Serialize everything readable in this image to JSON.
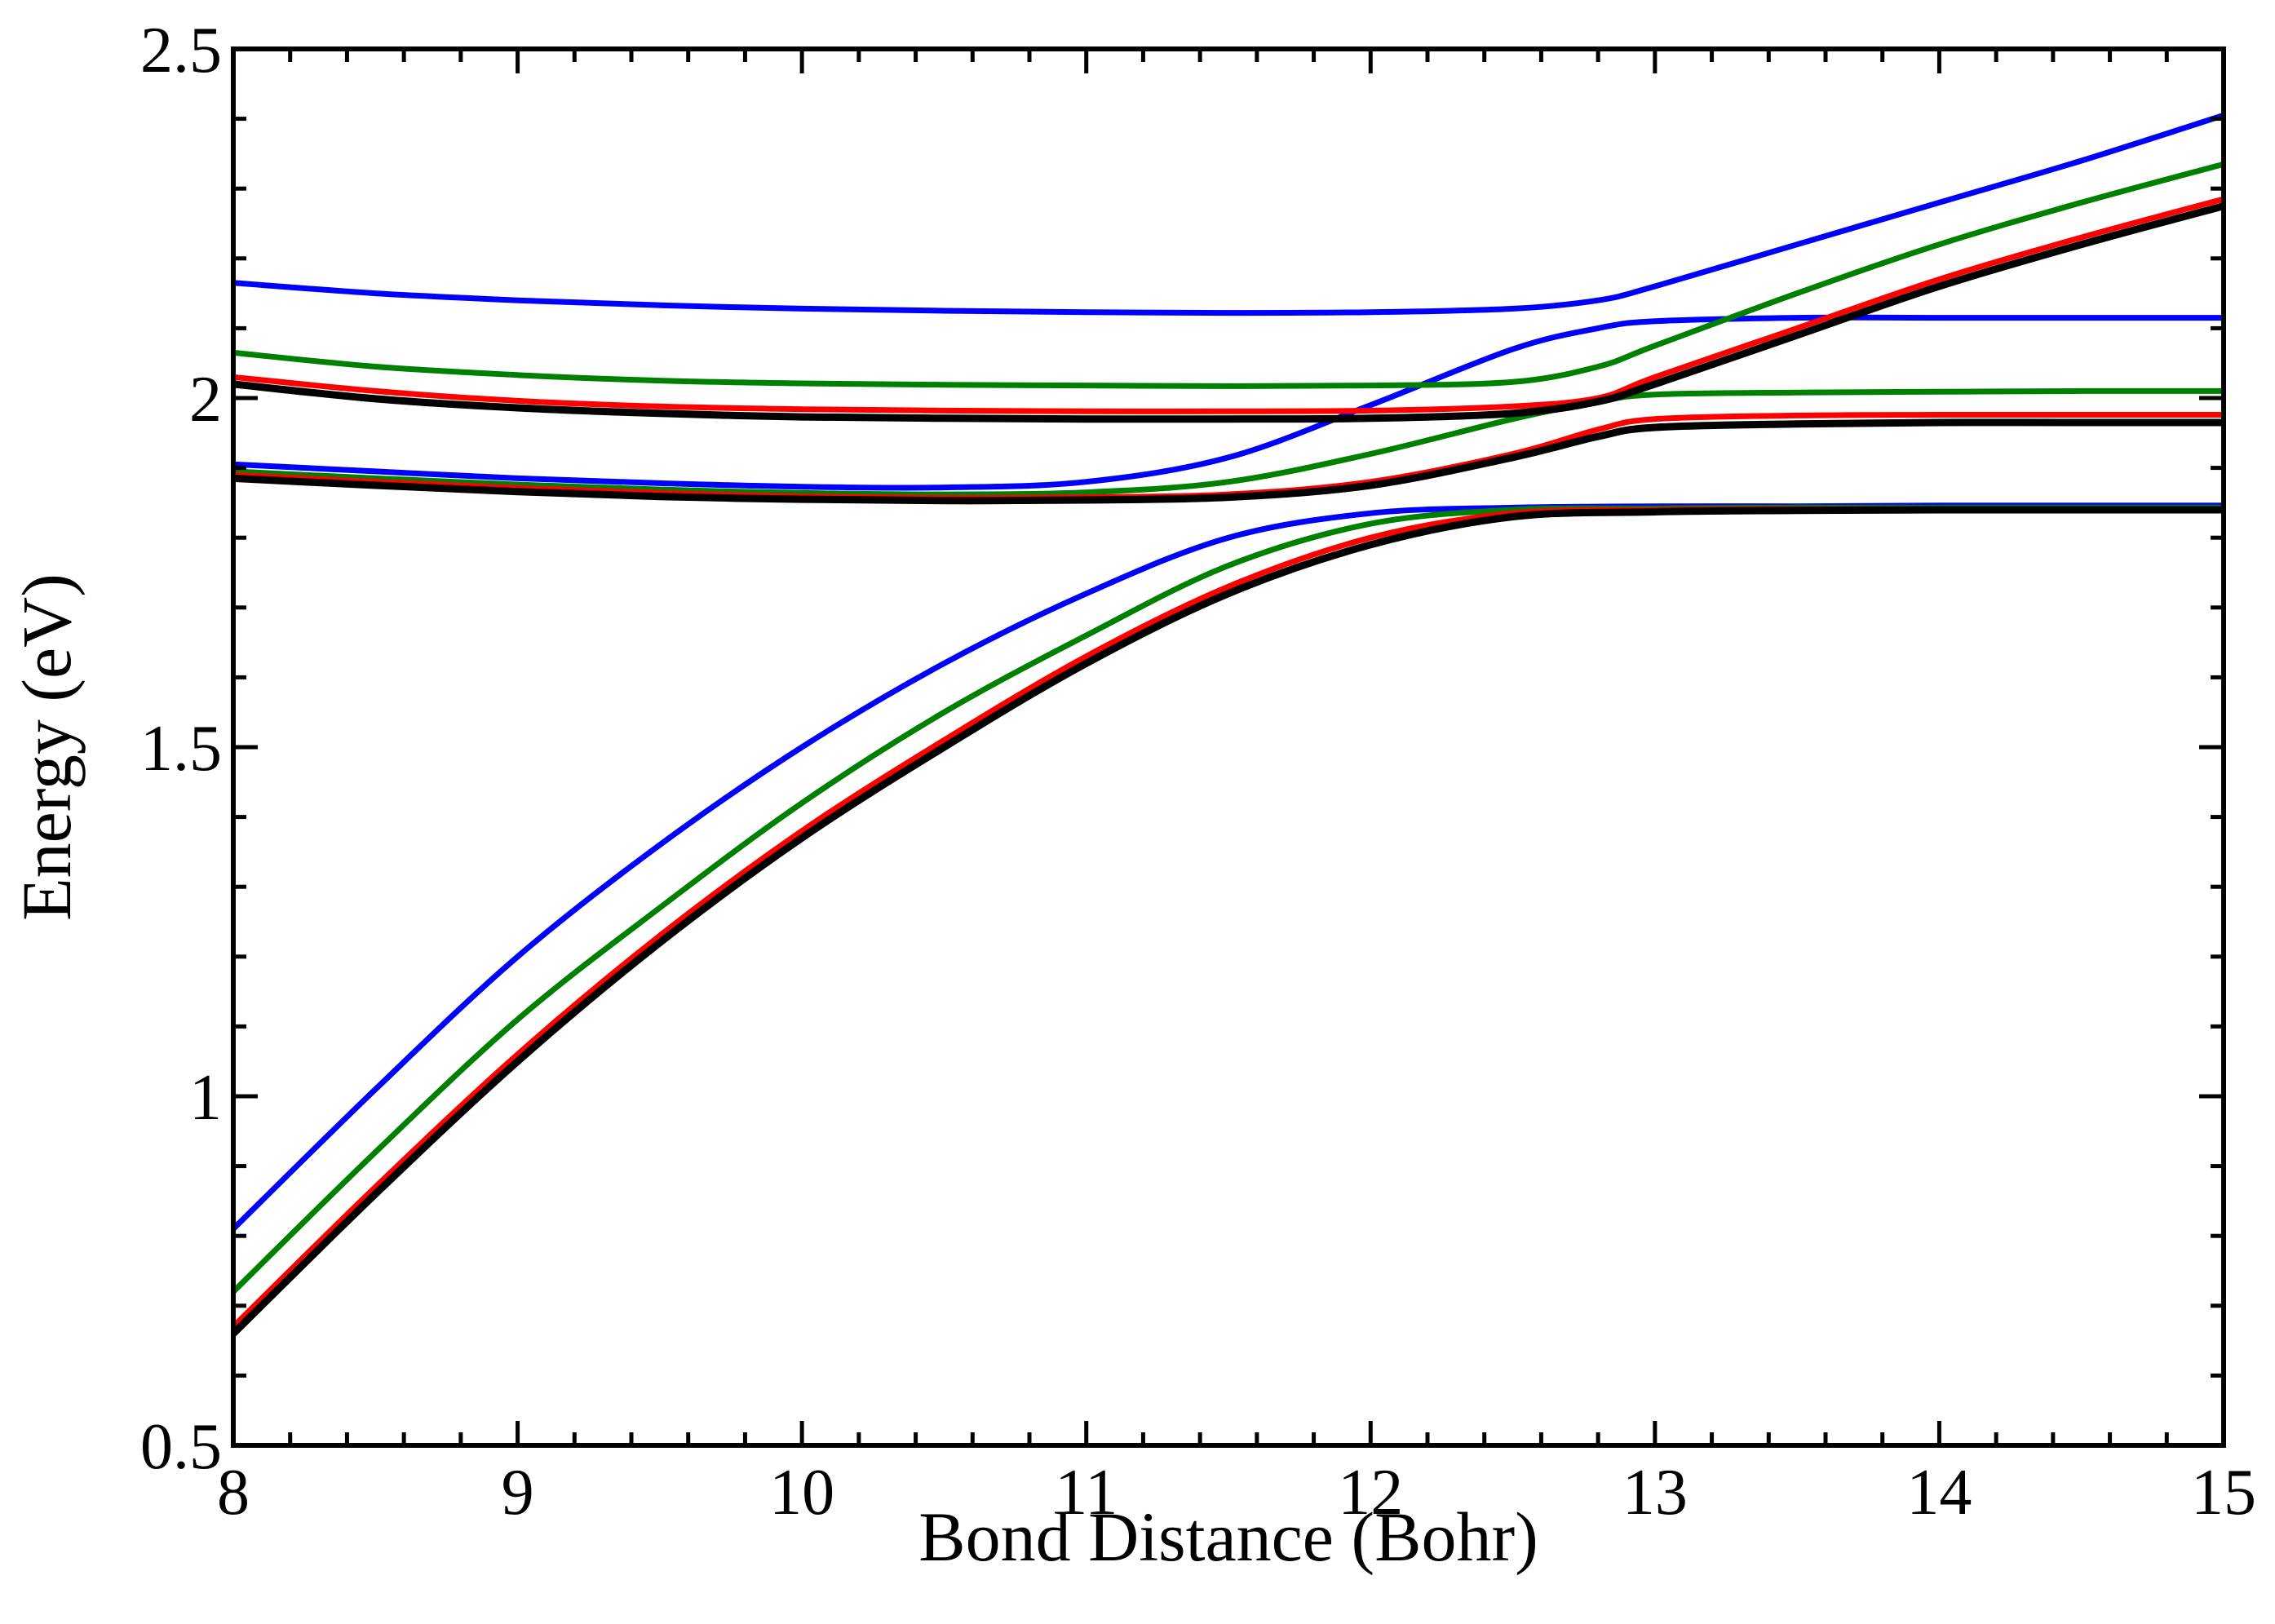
{
  "chart_data": {
    "type": "line",
    "title": "",
    "xlabel": "Bond Distance (Bohr)",
    "ylabel": "Energy (eV)",
    "xlim": [
      8,
      15
    ],
    "ylim": [
      0.5,
      2.5
    ],
    "x_ticks": [
      8,
      9,
      10,
      11,
      12,
      13,
      14,
      15
    ],
    "x_tick_labels": [
      "8",
      "9",
      "10",
      "11",
      "12",
      "13",
      "14",
      "15"
    ],
    "y_ticks": [
      0.5,
      1,
      1.5,
      2,
      2.5
    ],
    "y_tick_labels": [
      "0.5",
      "1",
      "1.5",
      "2",
      "2.5"
    ],
    "grid": false,
    "legend": "none",
    "series": [
      {
        "name": "blue-lower",
        "color": "#0000ff",
        "x": [
          8,
          8.5,
          9,
          9.5,
          10,
          10.5,
          11,
          11.5,
          12,
          12.5,
          13,
          13.5,
          14,
          14.5,
          15
        ],
        "y": [
          0.81,
          1.01,
          1.2,
          1.36,
          1.5,
          1.62,
          1.72,
          1.8,
          1.835,
          1.843,
          1.845,
          1.845,
          1.846,
          1.846,
          1.846
        ]
      },
      {
        "name": "green-lower",
        "color": "#008000",
        "x": [
          8,
          8.5,
          9,
          9.5,
          10,
          10.5,
          11,
          11.5,
          12,
          12.5,
          13,
          13.5,
          14,
          14.5,
          15
        ],
        "y": [
          0.72,
          0.92,
          1.11,
          1.27,
          1.42,
          1.55,
          1.66,
          1.76,
          1.82,
          1.84,
          1.842,
          1.843,
          1.843,
          1.843,
          1.843
        ]
      },
      {
        "name": "red-lower",
        "color": "#ff0000",
        "x": [
          8,
          8.5,
          9,
          9.5,
          10,
          10.5,
          11,
          11.5,
          12,
          12.5,
          13,
          13.5,
          14,
          14.5,
          15
        ],
        "y": [
          0.67,
          0.87,
          1.06,
          1.23,
          1.38,
          1.51,
          1.63,
          1.73,
          1.8,
          1.835,
          1.84,
          1.841,
          1.841,
          1.841,
          1.841
        ]
      },
      {
        "name": "black-lower",
        "color": "#000000",
        "x": [
          8,
          8.5,
          9,
          9.5,
          10,
          10.5,
          11,
          11.5,
          12,
          12.5,
          13,
          13.5,
          14,
          14.5,
          15
        ],
        "y": [
          0.66,
          0.86,
          1.05,
          1.22,
          1.37,
          1.5,
          1.62,
          1.72,
          1.79,
          1.83,
          1.837,
          1.839,
          1.84,
          1.84,
          1.84
        ]
      },
      {
        "name": "blue-middle",
        "color": "#0000ff",
        "x": [
          8,
          8.5,
          9,
          9.5,
          10,
          10.5,
          11,
          11.5,
          12,
          12.5,
          12.8,
          13,
          13.5,
          14,
          14.5,
          15
        ],
        "y": [
          1.905,
          1.895,
          1.885,
          1.878,
          1.873,
          1.872,
          1.88,
          1.915,
          1.99,
          2.07,
          2.1,
          2.11,
          2.115,
          2.115,
          2.115,
          2.115
        ]
      },
      {
        "name": "green-middle",
        "color": "#008000",
        "x": [
          8,
          8.5,
          9,
          9.5,
          10,
          10.5,
          11,
          11.5,
          12,
          12.5,
          12.8,
          13,
          13.5,
          14,
          14.5,
          15
        ],
        "y": [
          1.895,
          1.885,
          1.876,
          1.869,
          1.864,
          1.862,
          1.865,
          1.88,
          1.92,
          1.97,
          1.995,
          2.005,
          2.008,
          2.009,
          2.01,
          2.01
        ]
      },
      {
        "name": "red-middle",
        "color": "#ff0000",
        "x": [
          8,
          8.5,
          9,
          9.5,
          10,
          10.5,
          11,
          11.5,
          12,
          12.5,
          12.8,
          13,
          13.5,
          14,
          14.5,
          15
        ],
        "y": [
          1.89,
          1.88,
          1.871,
          1.864,
          1.859,
          1.857,
          1.858,
          1.862,
          1.88,
          1.92,
          1.955,
          1.97,
          1.975,
          1.976,
          1.976,
          1.976
        ]
      },
      {
        "name": "black-middle",
        "color": "#000000",
        "x": [
          8,
          8.5,
          9,
          9.5,
          10,
          10.5,
          11,
          11.5,
          12,
          12.5,
          12.8,
          13,
          13.5,
          14,
          14.5,
          15
        ],
        "y": [
          1.885,
          1.875,
          1.866,
          1.859,
          1.855,
          1.853,
          1.854,
          1.858,
          1.875,
          1.915,
          1.945,
          1.958,
          1.963,
          1.965,
          1.965,
          1.965
        ]
      },
      {
        "name": "blue-upper",
        "color": "#0000ff",
        "x": [
          8,
          8.5,
          9,
          9.5,
          10,
          10.5,
          11,
          11.5,
          12,
          12.5,
          12.8,
          13,
          13.5,
          14,
          14.5,
          15
        ],
        "y": [
          2.165,
          2.15,
          2.14,
          2.133,
          2.128,
          2.125,
          2.123,
          2.122,
          2.123,
          2.128,
          2.14,
          2.16,
          2.22,
          2.28,
          2.34,
          2.405
        ]
      },
      {
        "name": "green-upper",
        "color": "#008000",
        "x": [
          8,
          8.5,
          9,
          9.5,
          10,
          10.5,
          11,
          11.5,
          12,
          12.5,
          12.8,
          13,
          13.5,
          14,
          14.5,
          15
        ],
        "y": [
          2.065,
          2.045,
          2.033,
          2.025,
          2.021,
          2.019,
          2.018,
          2.017,
          2.018,
          2.023,
          2.045,
          2.075,
          2.15,
          2.22,
          2.28,
          2.335
        ]
      },
      {
        "name": "red-upper",
        "color": "#ff0000",
        "x": [
          8,
          8.5,
          9,
          9.5,
          10,
          10.5,
          11,
          11.5,
          12,
          12.5,
          12.8,
          13,
          13.5,
          14,
          14.5,
          15
        ],
        "y": [
          2.03,
          2.01,
          1.996,
          1.988,
          1.984,
          1.982,
          1.981,
          1.981,
          1.982,
          1.988,
          2.0,
          2.03,
          2.1,
          2.17,
          2.23,
          2.285
        ]
      },
      {
        "name": "black-upper",
        "color": "#000000",
        "x": [
          8,
          8.5,
          9,
          9.5,
          10,
          10.5,
          11,
          11.5,
          12,
          12.5,
          12.8,
          13,
          13.5,
          14,
          14.5,
          15
        ],
        "y": [
          2.02,
          1.999,
          1.986,
          1.978,
          1.973,
          1.971,
          1.97,
          1.97,
          1.971,
          1.978,
          1.995,
          2.02,
          2.09,
          2.16,
          2.22,
          2.275
        ]
      }
    ]
  }
}
